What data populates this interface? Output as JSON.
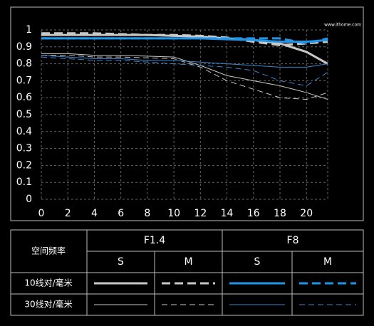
{
  "chart_data": {
    "type": "line",
    "watermark": "www.ithome.com",
    "x": [
      0,
      2,
      4,
      6,
      8,
      10,
      12,
      14,
      16,
      18,
      20,
      21.6
    ],
    "xlim": [
      0,
      21.6
    ],
    "xticks": [
      0,
      2,
      4,
      6,
      8,
      10,
      12,
      14,
      16,
      18,
      20
    ],
    "ylim": [
      0,
      1
    ],
    "yticks": [
      0,
      0.1,
      0.2,
      0.3,
      0.4,
      0.5,
      0.6,
      0.7,
      0.8,
      0.9,
      1
    ],
    "grid": true,
    "series": [
      {
        "color": "#c8c8c8",
        "width": 3,
        "dashed": false,
        "values": [
          0.97,
          0.97,
          0.97,
          0.97,
          0.97,
          0.965,
          0.96,
          0.95,
          0.94,
          0.92,
          0.87,
          0.8
        ]
      },
      {
        "color": "#c8c8c8",
        "width": 3,
        "dashed": true,
        "values": [
          0.98,
          0.98,
          0.98,
          0.975,
          0.97,
          0.97,
          0.965,
          0.955,
          0.93,
          0.91,
          0.92,
          0.93
        ]
      },
      {
        "color": "#2196e8",
        "width": 3,
        "dashed": false,
        "values": [
          0.95,
          0.95,
          0.95,
          0.95,
          0.95,
          0.95,
          0.95,
          0.945,
          0.94,
          0.93,
          0.93,
          0.94
        ]
      },
      {
        "color": "#2196e8",
        "width": 3,
        "dashed": true,
        "values": [
          0.95,
          0.95,
          0.95,
          0.95,
          0.95,
          0.95,
          0.95,
          0.95,
          0.95,
          0.95,
          0.92,
          0.95
        ]
      },
      {
        "color": "#c8c8c8",
        "width": 1,
        "dashed": false,
        "values": [
          0.86,
          0.86,
          0.85,
          0.85,
          0.845,
          0.84,
          0.79,
          0.73,
          0.7,
          0.67,
          0.63,
          0.59
        ]
      },
      {
        "color": "#c8c8c8",
        "width": 1,
        "dashed": true,
        "values": [
          0.85,
          0.85,
          0.84,
          0.84,
          0.835,
          0.83,
          0.78,
          0.7,
          0.65,
          0.6,
          0.59,
          0.63
        ]
      },
      {
        "color": "#3a86d0",
        "width": 1,
        "dashed": false,
        "values": [
          0.85,
          0.84,
          0.83,
          0.83,
          0.82,
          0.82,
          0.81,
          0.8,
          0.79,
          0.78,
          0.78,
          0.8
        ]
      },
      {
        "color": "#3a86d0",
        "width": 1,
        "dashed": true,
        "values": [
          0.84,
          0.83,
          0.82,
          0.82,
          0.81,
          0.8,
          0.79,
          0.78,
          0.76,
          0.7,
          0.67,
          0.75
        ]
      }
    ]
  },
  "legend_table": {
    "header": "空间频率",
    "apertures": [
      "F1.4",
      "F8"
    ],
    "positions": [
      "S",
      "M",
      "S",
      "M"
    ],
    "rows": [
      "10线对/毫米",
      "30线对/毫米"
    ]
  }
}
